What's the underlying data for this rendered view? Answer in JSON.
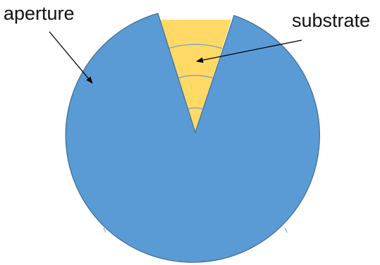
{
  "labels": {
    "aperture": "aperture",
    "substrate": "substrate"
  },
  "colors": {
    "aperture_fill": "#5b9bd5",
    "aperture_stroke": "#41719c",
    "substrate_fill": "#ffd966",
    "arc_lines": "#6f9fc9",
    "arrow": "#000000"
  }
}
